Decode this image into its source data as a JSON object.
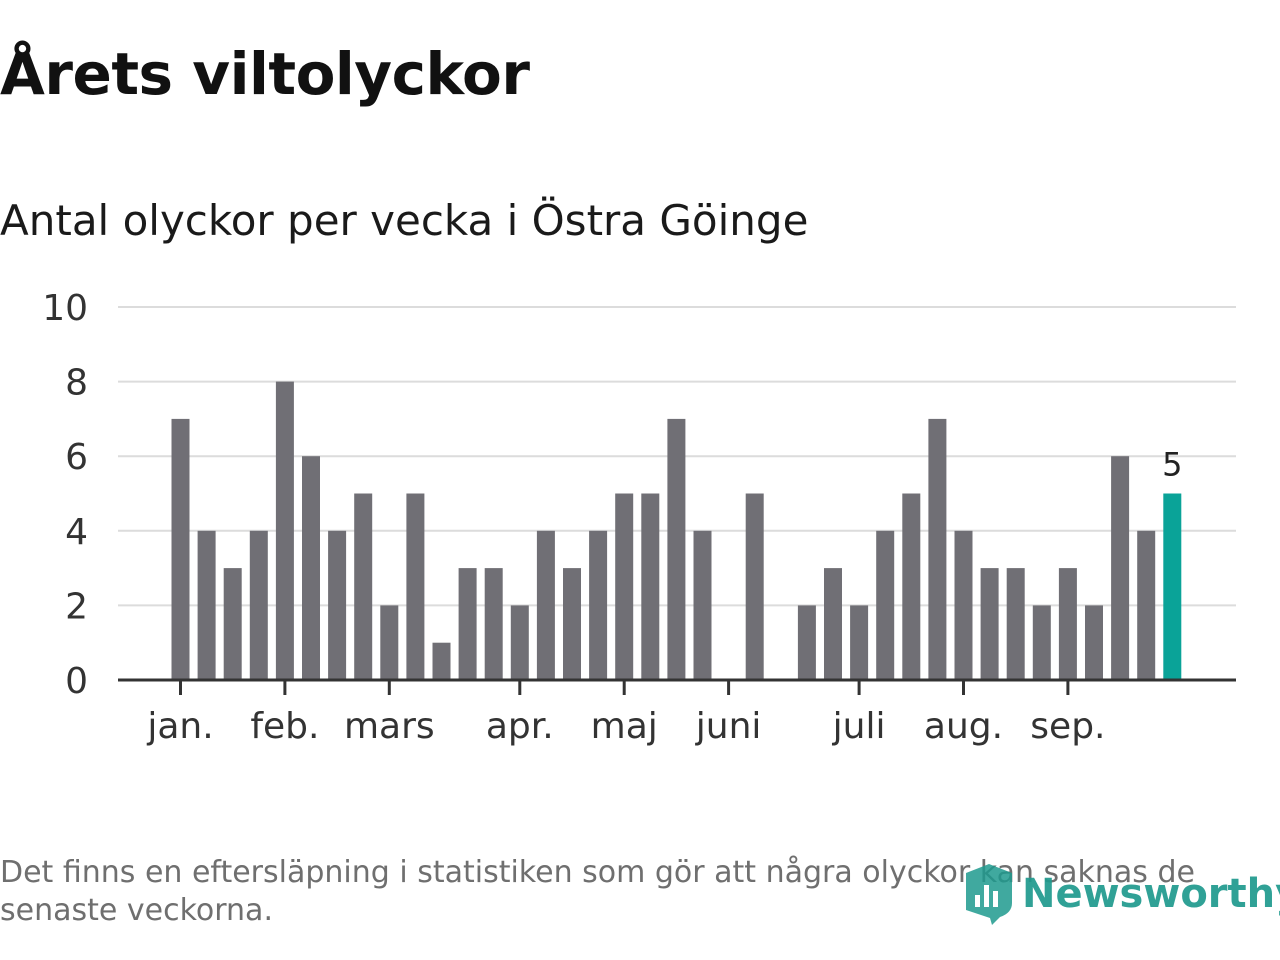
{
  "title": "Årets viltolyckor",
  "subtitle": "Antal olyckor per vecka i Östra Göinge",
  "footnote": "Det finns en eftersläpning i statistiken som gör att några olyckor kan saknas de senaste veckorna.",
  "logo_text": "Newsworthy",
  "colors": {
    "bar": "#706f75",
    "highlight": "#0aa398",
    "grid": "#dcdcdc",
    "axis": "#333333",
    "brand": "#1f9a8e"
  },
  "chart_data": {
    "type": "bar",
    "values": [
      7,
      4,
      3,
      4,
      8,
      6,
      4,
      5,
      2,
      5,
      1,
      3,
      3,
      2,
      4,
      3,
      4,
      5,
      5,
      7,
      4,
      0,
      5,
      0,
      2,
      3,
      2,
      4,
      5,
      7,
      4,
      3,
      3,
      2,
      3,
      2,
      6,
      4,
      5
    ],
    "highlight_last": true,
    "last_value_label": "5",
    "month_labels": [
      "jan.",
      "feb.",
      "mars",
      "apr.",
      "maj",
      "juni",
      "juli",
      "aug.",
      "sep."
    ],
    "y_ticks": [
      "0",
      "2",
      "4",
      "6",
      "8",
      "10"
    ],
    "ylim": [
      0,
      10
    ],
    "grid": true
  }
}
